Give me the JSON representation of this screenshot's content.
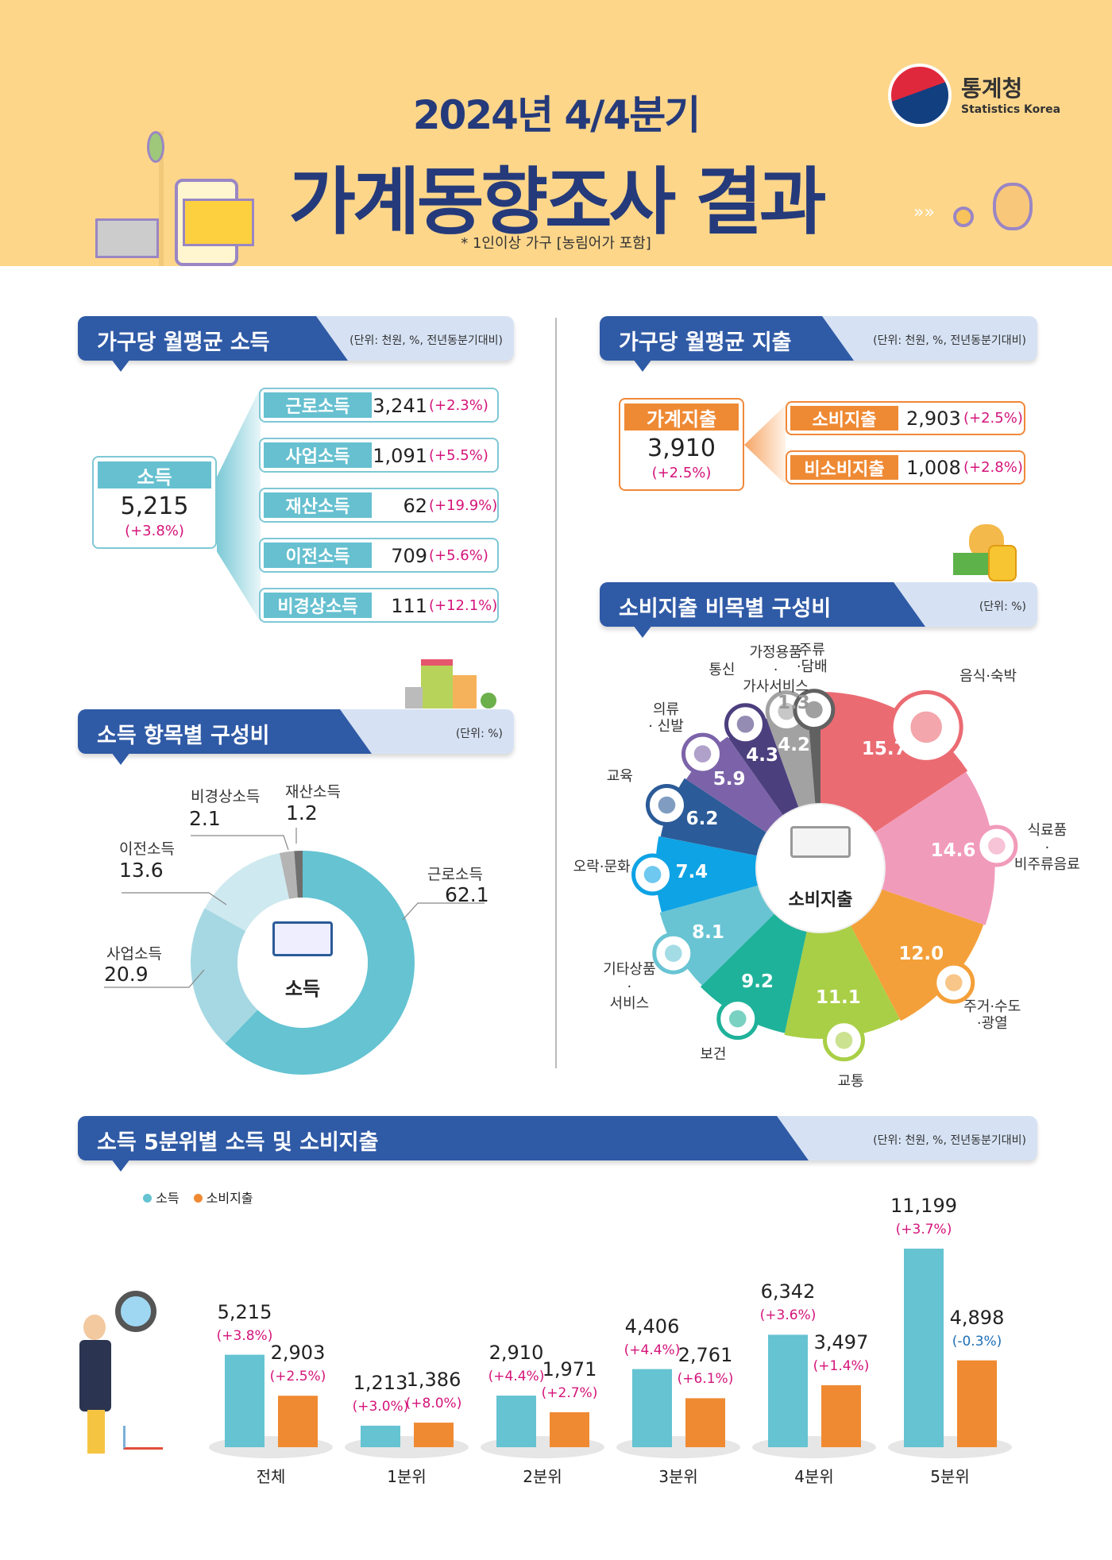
{
  "header": {
    "subtitle": "2024년 4/4분기",
    "title": "가계동향조사 결과",
    "note": "* 1인이상 가구 [농림어가 포함]",
    "logo_ko": "통계청",
    "logo_en": "Statistics Korea"
  },
  "income": {
    "section_title": "가구당 월평균 소득",
    "unit": "(단위: 천원, %, 전년동분기대비)",
    "total": {
      "label": "소득",
      "value": "5,215",
      "change": "(+3.8%)"
    },
    "items": [
      {
        "label": "근로소득",
        "value": "3,241",
        "change": "(+2.3%)"
      },
      {
        "label": "사업소득",
        "value": "1,091",
        "change": "(+5.5%)"
      },
      {
        "label": "재산소득",
        "value": "62",
        "change": "(+19.9%)"
      },
      {
        "label": "이전소득",
        "value": "709",
        "change": "(+5.6%)"
      },
      {
        "label": "비경상소득",
        "value": "111",
        "change": "(+12.1%)"
      }
    ]
  },
  "expense": {
    "section_title": "가구당 월평균 지출",
    "unit": "(단위: 천원, %, 전년동분기대비)",
    "total": {
      "label": "가계지출",
      "value": "3,910",
      "change": "(+2.5%)"
    },
    "items": [
      {
        "label": "소비지출",
        "value": "2,903",
        "change": "(+2.5%)"
      },
      {
        "label": "비소비지출",
        "value": "1,008",
        "change": "(+2.8%)"
      }
    ]
  },
  "income_composition": {
    "section_title": "소득 항목별 구성비",
    "unit": "(단위: %)",
    "center_label": "소득"
  },
  "consumption_composition": {
    "section_title": "소비지출 비목별 구성비",
    "unit": "(단위: %)",
    "center_label": "소비지출"
  },
  "quintile": {
    "section_title": "소득 5분위별 소득 및 소비지출",
    "unit": "(단위: 천원, %, 전년동분기대비)"
  },
  "chart_data": [
    {
      "type": "pie",
      "style": "donut",
      "direction": "clockwise from top",
      "categories": [
        "근로소득",
        "사업소득",
        "이전소득",
        "비경상소득",
        "재산소득"
      ],
      "values": [
        62.1,
        20.9,
        13.6,
        2.1,
        1.2
      ],
      "colors": [
        "#65c3d2",
        "#a6d8e3",
        "#cfe9f0",
        "#b4b4b4",
        "#6e6e6e"
      ]
    },
    {
      "type": "pie",
      "style": "rose",
      "direction": "clockwise from top",
      "categories": [
        "음식·숙박",
        "식료품·비주류음료",
        "주거·수도·광열",
        "교통",
        "보건",
        "기타상품·서비스",
        "오락·문화",
        "교육",
        "의류·신발",
        "통신",
        "가정용품·가사서비스",
        "주류·담배"
      ],
      "label_lines": [
        "음식·숙박",
        "식료품\n·\n비주류음료",
        "주거·수도\n·광열",
        "교통",
        "보건",
        "기타상품\n·\n서비스",
        "오락·문화",
        "교육",
        "의류\n· 신발",
        "통신",
        "가정용품\n·\n가사서비스",
        "주류\n·담배"
      ],
      "values": [
        15.7,
        14.6,
        12.0,
        11.1,
        9.2,
        8.1,
        7.4,
        6.2,
        5.9,
        4.3,
        4.2,
        1.3
      ],
      "colors": [
        "#eb6b73",
        "#f19bba",
        "#f4a03a",
        "#a9cf46",
        "#1fb29a",
        "#68c4d3",
        "#0ea3e4",
        "#2b5b98",
        "#7c63a9",
        "#4c3f7e",
        "#a2a2a2",
        "#616161"
      ]
    },
    {
      "type": "bar",
      "categories": [
        "전체",
        "1분위",
        "2분위",
        "3분위",
        "4분위",
        "5분위"
      ],
      "legend_position": "top-left",
      "series": [
        {
          "name": "소득",
          "color": "#65c3d2",
          "values": [
            5215,
            1213,
            2910,
            4406,
            6342,
            11199
          ],
          "changes": [
            "(+3.8%)",
            "(+3.0%)",
            "(+4.4%)",
            "(+4.4%)",
            "(+3.6%)",
            "(+3.7%)"
          ]
        },
        {
          "name": "소비지출",
          "color": "#f08a32",
          "values": [
            2903,
            1386,
            1971,
            2761,
            3497,
            4898
          ],
          "changes": [
            "(+2.5%)",
            "(+8.0%)",
            "(+2.7%)",
            "(+6.1%)",
            "(+1.4%)",
            "(-0.3%)"
          ]
        }
      ],
      "positive_color": "#d4147a",
      "negative_color": "#1f6fb5"
    }
  ]
}
